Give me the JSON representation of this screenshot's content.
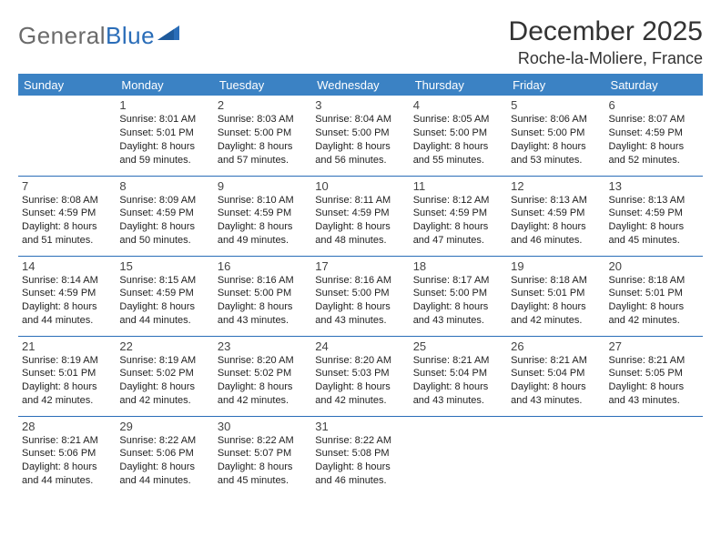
{
  "brand": {
    "name_part1": "General",
    "name_part2": "Blue",
    "logo_color": "#2a6db8",
    "text_gray": "#6b6b6b"
  },
  "title": "December 2025",
  "location": "Roche-la-Moliere, France",
  "colors": {
    "header_bg": "#3b82c4",
    "header_fg": "#ffffff",
    "rule": "#2a6db8",
    "body_text": "#222222",
    "daynum": "#444444",
    "page_bg": "#ffffff"
  },
  "typography": {
    "title_fontsize": 30,
    "location_fontsize": 18,
    "dayheader_fontsize": 13,
    "daynum_fontsize": 13,
    "cell_fontsize": 11
  },
  "days_of_week": [
    "Sunday",
    "Monday",
    "Tuesday",
    "Wednesday",
    "Thursday",
    "Friday",
    "Saturday"
  ],
  "weeks": [
    [
      null,
      {
        "n": "1",
        "sr": "Sunrise: 8:01 AM",
        "ss": "Sunset: 5:01 PM",
        "d1": "Daylight: 8 hours",
        "d2": "and 59 minutes."
      },
      {
        "n": "2",
        "sr": "Sunrise: 8:03 AM",
        "ss": "Sunset: 5:00 PM",
        "d1": "Daylight: 8 hours",
        "d2": "and 57 minutes."
      },
      {
        "n": "3",
        "sr": "Sunrise: 8:04 AM",
        "ss": "Sunset: 5:00 PM",
        "d1": "Daylight: 8 hours",
        "d2": "and 56 minutes."
      },
      {
        "n": "4",
        "sr": "Sunrise: 8:05 AM",
        "ss": "Sunset: 5:00 PM",
        "d1": "Daylight: 8 hours",
        "d2": "and 55 minutes."
      },
      {
        "n": "5",
        "sr": "Sunrise: 8:06 AM",
        "ss": "Sunset: 5:00 PM",
        "d1": "Daylight: 8 hours",
        "d2": "and 53 minutes."
      },
      {
        "n": "6",
        "sr": "Sunrise: 8:07 AM",
        "ss": "Sunset: 4:59 PM",
        "d1": "Daylight: 8 hours",
        "d2": "and 52 minutes."
      }
    ],
    [
      {
        "n": "7",
        "sr": "Sunrise: 8:08 AM",
        "ss": "Sunset: 4:59 PM",
        "d1": "Daylight: 8 hours",
        "d2": "and 51 minutes."
      },
      {
        "n": "8",
        "sr": "Sunrise: 8:09 AM",
        "ss": "Sunset: 4:59 PM",
        "d1": "Daylight: 8 hours",
        "d2": "and 50 minutes."
      },
      {
        "n": "9",
        "sr": "Sunrise: 8:10 AM",
        "ss": "Sunset: 4:59 PM",
        "d1": "Daylight: 8 hours",
        "d2": "and 49 minutes."
      },
      {
        "n": "10",
        "sr": "Sunrise: 8:11 AM",
        "ss": "Sunset: 4:59 PM",
        "d1": "Daylight: 8 hours",
        "d2": "and 48 minutes."
      },
      {
        "n": "11",
        "sr": "Sunrise: 8:12 AM",
        "ss": "Sunset: 4:59 PM",
        "d1": "Daylight: 8 hours",
        "d2": "and 47 minutes."
      },
      {
        "n": "12",
        "sr": "Sunrise: 8:13 AM",
        "ss": "Sunset: 4:59 PM",
        "d1": "Daylight: 8 hours",
        "d2": "and 46 minutes."
      },
      {
        "n": "13",
        "sr": "Sunrise: 8:13 AM",
        "ss": "Sunset: 4:59 PM",
        "d1": "Daylight: 8 hours",
        "d2": "and 45 minutes."
      }
    ],
    [
      {
        "n": "14",
        "sr": "Sunrise: 8:14 AM",
        "ss": "Sunset: 4:59 PM",
        "d1": "Daylight: 8 hours",
        "d2": "and 44 minutes."
      },
      {
        "n": "15",
        "sr": "Sunrise: 8:15 AM",
        "ss": "Sunset: 4:59 PM",
        "d1": "Daylight: 8 hours",
        "d2": "and 44 minutes."
      },
      {
        "n": "16",
        "sr": "Sunrise: 8:16 AM",
        "ss": "Sunset: 5:00 PM",
        "d1": "Daylight: 8 hours",
        "d2": "and 43 minutes."
      },
      {
        "n": "17",
        "sr": "Sunrise: 8:16 AM",
        "ss": "Sunset: 5:00 PM",
        "d1": "Daylight: 8 hours",
        "d2": "and 43 minutes."
      },
      {
        "n": "18",
        "sr": "Sunrise: 8:17 AM",
        "ss": "Sunset: 5:00 PM",
        "d1": "Daylight: 8 hours",
        "d2": "and 43 minutes."
      },
      {
        "n": "19",
        "sr": "Sunrise: 8:18 AM",
        "ss": "Sunset: 5:01 PM",
        "d1": "Daylight: 8 hours",
        "d2": "and 42 minutes."
      },
      {
        "n": "20",
        "sr": "Sunrise: 8:18 AM",
        "ss": "Sunset: 5:01 PM",
        "d1": "Daylight: 8 hours",
        "d2": "and 42 minutes."
      }
    ],
    [
      {
        "n": "21",
        "sr": "Sunrise: 8:19 AM",
        "ss": "Sunset: 5:01 PM",
        "d1": "Daylight: 8 hours",
        "d2": "and 42 minutes."
      },
      {
        "n": "22",
        "sr": "Sunrise: 8:19 AM",
        "ss": "Sunset: 5:02 PM",
        "d1": "Daylight: 8 hours",
        "d2": "and 42 minutes."
      },
      {
        "n": "23",
        "sr": "Sunrise: 8:20 AM",
        "ss": "Sunset: 5:02 PM",
        "d1": "Daylight: 8 hours",
        "d2": "and 42 minutes."
      },
      {
        "n": "24",
        "sr": "Sunrise: 8:20 AM",
        "ss": "Sunset: 5:03 PM",
        "d1": "Daylight: 8 hours",
        "d2": "and 42 minutes."
      },
      {
        "n": "25",
        "sr": "Sunrise: 8:21 AM",
        "ss": "Sunset: 5:04 PM",
        "d1": "Daylight: 8 hours",
        "d2": "and 43 minutes."
      },
      {
        "n": "26",
        "sr": "Sunrise: 8:21 AM",
        "ss": "Sunset: 5:04 PM",
        "d1": "Daylight: 8 hours",
        "d2": "and 43 minutes."
      },
      {
        "n": "27",
        "sr": "Sunrise: 8:21 AM",
        "ss": "Sunset: 5:05 PM",
        "d1": "Daylight: 8 hours",
        "d2": "and 43 minutes."
      }
    ],
    [
      {
        "n": "28",
        "sr": "Sunrise: 8:21 AM",
        "ss": "Sunset: 5:06 PM",
        "d1": "Daylight: 8 hours",
        "d2": "and 44 minutes."
      },
      {
        "n": "29",
        "sr": "Sunrise: 8:22 AM",
        "ss": "Sunset: 5:06 PM",
        "d1": "Daylight: 8 hours",
        "d2": "and 44 minutes."
      },
      {
        "n": "30",
        "sr": "Sunrise: 8:22 AM",
        "ss": "Sunset: 5:07 PM",
        "d1": "Daylight: 8 hours",
        "d2": "and 45 minutes."
      },
      {
        "n": "31",
        "sr": "Sunrise: 8:22 AM",
        "ss": "Sunset: 5:08 PM",
        "d1": "Daylight: 8 hours",
        "d2": "and 46 minutes."
      },
      null,
      null,
      null
    ]
  ]
}
